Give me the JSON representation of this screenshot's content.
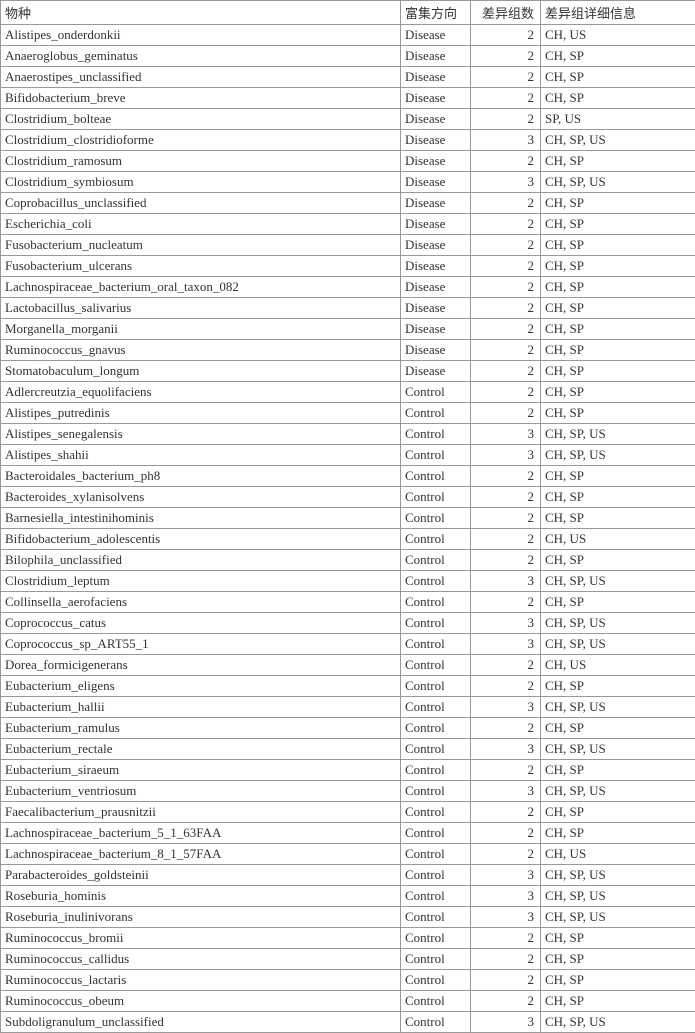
{
  "headers": {
    "species": "物种",
    "direction": "富集方向",
    "count": "差异组数",
    "detail": "差异组详细信息"
  },
  "rows": [
    {
      "species": "Alistipes_onderdonkii",
      "direction": "Disease",
      "count": 2,
      "detail": "CH, US"
    },
    {
      "species": "Anaeroglobus_geminatus",
      "direction": "Disease",
      "count": 2,
      "detail": "CH, SP"
    },
    {
      "species": "Anaerostipes_unclassified",
      "direction": "Disease",
      "count": 2,
      "detail": "CH, SP"
    },
    {
      "species": "Bifidobacterium_breve",
      "direction": "Disease",
      "count": 2,
      "detail": "CH, SP"
    },
    {
      "species": "Clostridium_bolteae",
      "direction": "Disease",
      "count": 2,
      "detail": "SP, US"
    },
    {
      "species": "Clostridium_clostridioforme",
      "direction": "Disease",
      "count": 3,
      "detail": "CH, SP, US"
    },
    {
      "species": "Clostridium_ramosum",
      "direction": "Disease",
      "count": 2,
      "detail": "CH, SP"
    },
    {
      "species": "Clostridium_symbiosum",
      "direction": "Disease",
      "count": 3,
      "detail": "CH, SP, US"
    },
    {
      "species": "Coprobacillus_unclassified",
      "direction": "Disease",
      "count": 2,
      "detail": "CH, SP"
    },
    {
      "species": "Escherichia_coli",
      "direction": "Disease",
      "count": 2,
      "detail": "CH, SP"
    },
    {
      "species": "Fusobacterium_nucleatum",
      "direction": "Disease",
      "count": 2,
      "detail": "CH, SP"
    },
    {
      "species": "Fusobacterium_ulcerans",
      "direction": "Disease",
      "count": 2,
      "detail": "CH, SP"
    },
    {
      "species": "Lachnospiraceae_bacterium_oral_taxon_082",
      "direction": "Disease",
      "count": 2,
      "detail": "CH, SP"
    },
    {
      "species": "Lactobacillus_salivarius",
      "direction": "Disease",
      "count": 2,
      "detail": "CH, SP"
    },
    {
      "species": "Morganella_morganii",
      "direction": "Disease",
      "count": 2,
      "detail": "CH, SP"
    },
    {
      "species": "Ruminococcus_gnavus",
      "direction": "Disease",
      "count": 2,
      "detail": "CH, SP"
    },
    {
      "species": "Stomatobaculum_longum",
      "direction": "Disease",
      "count": 2,
      "detail": "CH, SP"
    },
    {
      "species": "Adlercreutzia_equolifaciens",
      "direction": "Control",
      "count": 2,
      "detail": "CH, SP"
    },
    {
      "species": "Alistipes_putredinis",
      "direction": "Control",
      "count": 2,
      "detail": "CH, SP"
    },
    {
      "species": "Alistipes_senegalensis",
      "direction": "Control",
      "count": 3,
      "detail": "CH, SP, US"
    },
    {
      "species": "Alistipes_shahii",
      "direction": "Control",
      "count": 3,
      "detail": "CH, SP, US"
    },
    {
      "species": "Bacteroidales_bacterium_ph8",
      "direction": "Control",
      "count": 2,
      "detail": "CH, SP"
    },
    {
      "species": "Bacteroides_xylanisolvens",
      "direction": "Control",
      "count": 2,
      "detail": "CH, SP"
    },
    {
      "species": "Barnesiella_intestinihominis",
      "direction": "Control",
      "count": 2,
      "detail": "CH, SP"
    },
    {
      "species": "Bifidobacterium_adolescentis",
      "direction": "Control",
      "count": 2,
      "detail": "CH, US"
    },
    {
      "species": "Bilophila_unclassified",
      "direction": "Control",
      "count": 2,
      "detail": "CH, SP"
    },
    {
      "species": "Clostridium_leptum",
      "direction": "Control",
      "count": 3,
      "detail": "CH, SP, US"
    },
    {
      "species": "Collinsella_aerofaciens",
      "direction": "Control",
      "count": 2,
      "detail": "CH, SP"
    },
    {
      "species": "Coprococcus_catus",
      "direction": "Control",
      "count": 3,
      "detail": "CH, SP, US"
    },
    {
      "species": "Coprococcus_sp_ART55_1",
      "direction": "Control",
      "count": 3,
      "detail": "CH, SP, US"
    },
    {
      "species": "Dorea_formicigenerans",
      "direction": "Control",
      "count": 2,
      "detail": "CH, US"
    },
    {
      "species": "Eubacterium_eligens",
      "direction": "Control",
      "count": 2,
      "detail": "CH, SP"
    },
    {
      "species": "Eubacterium_hallii",
      "direction": "Control",
      "count": 3,
      "detail": "CH, SP, US"
    },
    {
      "species": "Eubacterium_ramulus",
      "direction": "Control",
      "count": 2,
      "detail": "CH, SP"
    },
    {
      "species": "Eubacterium_rectale",
      "direction": "Control",
      "count": 3,
      "detail": "CH, SP, US"
    },
    {
      "species": "Eubacterium_siraeum",
      "direction": "Control",
      "count": 2,
      "detail": "CH, SP"
    },
    {
      "species": "Eubacterium_ventriosum",
      "direction": "Control",
      "count": 3,
      "detail": "CH, SP, US"
    },
    {
      "species": "Faecalibacterium_prausnitzii",
      "direction": "Control",
      "count": 2,
      "detail": "CH, SP"
    },
    {
      "species": "Lachnospiraceae_bacterium_5_1_63FAA",
      "direction": "Control",
      "count": 2,
      "detail": "CH, SP"
    },
    {
      "species": "Lachnospiraceae_bacterium_8_1_57FAA",
      "direction": "Control",
      "count": 2,
      "detail": "CH, US"
    },
    {
      "species": "Parabacteroides_goldsteinii",
      "direction": "Control",
      "count": 3,
      "detail": "CH, SP, US"
    },
    {
      "species": "Roseburia_hominis",
      "direction": "Control",
      "count": 3,
      "detail": "CH, SP, US"
    },
    {
      "species": "Roseburia_inulinivorans",
      "direction": "Control",
      "count": 3,
      "detail": "CH, SP, US"
    },
    {
      "species": "Ruminococcus_bromii",
      "direction": "Control",
      "count": 2,
      "detail": "CH, SP"
    },
    {
      "species": "Ruminococcus_callidus",
      "direction": "Control",
      "count": 2,
      "detail": "CH, SP"
    },
    {
      "species": "Ruminococcus_lactaris",
      "direction": "Control",
      "count": 2,
      "detail": "CH, SP"
    },
    {
      "species": "Ruminococcus_obeum",
      "direction": "Control",
      "count": 2,
      "detail": "CH, SP"
    },
    {
      "species": "Subdoligranulum_unclassified",
      "direction": "Control",
      "count": 3,
      "detail": "CH, SP, US"
    }
  ]
}
